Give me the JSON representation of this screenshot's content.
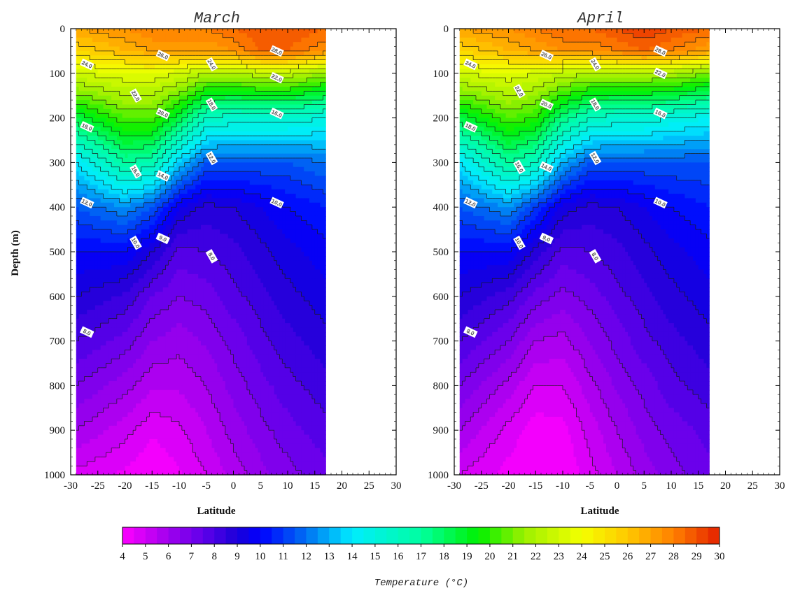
{
  "chart_data": [
    {
      "type": "heatmap",
      "title": "March",
      "xlabel": "Latitude",
      "ylabel": "Depth (m)",
      "xlim": [
        -30,
        30
      ],
      "ylim": [
        1000,
        0
      ],
      "data_extent_lat": [
        -29,
        17
      ],
      "xticks": [
        "-30",
        "-25",
        "-20",
        "-15",
        "-10",
        "-5",
        "0",
        "5",
        "10",
        "15",
        "20",
        "25",
        "30"
      ],
      "yticks": [
        "0",
        "100",
        "200",
        "300",
        "400",
        "500",
        "600",
        "700",
        "800",
        "900",
        "1000"
      ],
      "lat_grid": [
        -29,
        -20,
        -15,
        -10,
        -5,
        0,
        5,
        10,
        17
      ],
      "depth_grid": [
        0,
        50,
        100,
        200,
        300,
        400,
        500,
        600,
        700,
        800,
        900,
        1000
      ],
      "temperature": [
        [
          27.0,
          27.5,
          28.0,
          28.0,
          28.0,
          28.5,
          29.0,
          29.0,
          28.5
        ],
        [
          25.5,
          26.5,
          27.0,
          27.0,
          27.0,
          27.5,
          28.5,
          28.5,
          27.5
        ],
        [
          23.0,
          23.5,
          23.5,
          23.0,
          22.0,
          22.0,
          22.5,
          22.5,
          21.5
        ],
        [
          18.5,
          20.5,
          20.5,
          18.5,
          16.0,
          15.5,
          15.5,
          15.5,
          15.0
        ],
        [
          14.0,
          17.0,
          16.5,
          13.5,
          11.5,
          11.5,
          11.5,
          11.5,
          12.0
        ],
        [
          11.5,
          12.5,
          11.5,
          9.5,
          8.8,
          9.0,
          9.5,
          10.0,
          10.5
        ],
        [
          10.0,
          10.0,
          9.0,
          7.8,
          8.0,
          8.3,
          8.8,
          9.3,
          9.8
        ],
        [
          9.0,
          8.4,
          7.5,
          7.0,
          7.2,
          7.8,
          8.3,
          8.8,
          9.3
        ],
        [
          8.0,
          7.3,
          6.5,
          6.2,
          6.6,
          7.2,
          7.8,
          8.3,
          8.8
        ],
        [
          7.0,
          6.2,
          5.6,
          5.6,
          6.0,
          6.7,
          7.3,
          7.8,
          8.3
        ],
        [
          6.0,
          5.2,
          4.6,
          4.9,
          5.5,
          6.2,
          6.8,
          7.3,
          7.8
        ],
        [
          4.8,
          4.4,
          4.0,
          4.4,
          5.0,
          5.7,
          6.3,
          6.8,
          7.3
        ]
      ]
    },
    {
      "type": "heatmap",
      "title": "April",
      "xlabel": "Latitude",
      "ylabel": "",
      "xlim": [
        -30,
        30
      ],
      "ylim": [
        1000,
        0
      ],
      "data_extent_lat": [
        -29,
        17
      ],
      "xticks": [
        "-30",
        "-25",
        "-20",
        "-15",
        "-10",
        "-5",
        "0",
        "5",
        "10",
        "15",
        "20",
        "25",
        "30"
      ],
      "yticks": [
        "0",
        "100",
        "200",
        "300",
        "400",
        "500",
        "600",
        "700",
        "800",
        "900",
        "1000"
      ],
      "lat_grid": [
        -29,
        -20,
        -15,
        -10,
        -5,
        0,
        5,
        10,
        17
      ],
      "depth_grid": [
        0,
        50,
        100,
        200,
        300,
        400,
        500,
        600,
        700,
        800,
        900,
        1000
      ],
      "temperature": [
        [
          27.0,
          27.5,
          28.0,
          28.5,
          28.5,
          29.0,
          29.5,
          29.0,
          28.5
        ],
        [
          25.5,
          26.5,
          27.0,
          27.5,
          27.5,
          28.0,
          28.5,
          28.0,
          27.0
        ],
        [
          23.0,
          23.5,
          23.0,
          22.5,
          22.0,
          22.0,
          22.0,
          22.0,
          21.0
        ],
        [
          18.5,
          20.5,
          20.0,
          17.5,
          16.0,
          15.5,
          15.5,
          15.0,
          14.5
        ],
        [
          14.0,
          17.0,
          16.0,
          13.0,
          11.5,
          11.5,
          11.5,
          11.5,
          11.5
        ],
        [
          11.5,
          12.5,
          11.0,
          9.3,
          8.8,
          9.0,
          9.5,
          10.0,
          10.5
        ],
        [
          10.0,
          10.0,
          8.8,
          7.8,
          8.0,
          8.3,
          8.8,
          9.3,
          9.8
        ],
        [
          9.0,
          8.2,
          7.3,
          6.8,
          7.2,
          7.8,
          8.3,
          8.8,
          9.3
        ],
        [
          8.0,
          7.0,
          6.0,
          5.8,
          6.5,
          7.2,
          7.8,
          8.3,
          8.8
        ],
        [
          7.0,
          5.8,
          5.0,
          5.0,
          5.8,
          6.6,
          7.2,
          7.8,
          8.3
        ],
        [
          6.0,
          4.8,
          4.2,
          4.3,
          5.2,
          6.0,
          6.7,
          7.2,
          7.7
        ],
        [
          5.0,
          4.3,
          4.0,
          4.0,
          4.8,
          5.5,
          6.2,
          6.8,
          7.3
        ]
      ]
    }
  ],
  "colorbar": {
    "title": "Temperature (°C)",
    "min": 4,
    "max": 30,
    "step": 0.5,
    "ticks": [
      "4",
      "5",
      "6",
      "7",
      "8",
      "9",
      "10",
      "11",
      "12",
      "13",
      "14",
      "15",
      "16",
      "17",
      "18",
      "19",
      "20",
      "21",
      "22",
      "23",
      "24",
      "25",
      "26",
      "27",
      "28",
      "29",
      "30"
    ],
    "color_stops": [
      [
        4,
        "#ff00ff"
      ],
      [
        6,
        "#a000ee"
      ],
      [
        7.5,
        "#6000ea"
      ],
      [
        9,
        "#1a00d8"
      ],
      [
        10,
        "#0000ff"
      ],
      [
        12,
        "#0070f2"
      ],
      [
        14,
        "#00ecff"
      ],
      [
        17,
        "#00ffa0"
      ],
      [
        19.5,
        "#00f000"
      ],
      [
        21.5,
        "#9cf000"
      ],
      [
        24,
        "#f5ff00"
      ],
      [
        26,
        "#ffc800"
      ],
      [
        28,
        "#ff8000"
      ],
      [
        30,
        "#e42000"
      ]
    ]
  },
  "contour_labels": [
    "8.0",
    "9.0",
    "10.0",
    "12.0",
    "14.0",
    "16.0",
    "18.0",
    "20.0",
    "22.0",
    "24.0",
    "26.0",
    "28.0"
  ]
}
